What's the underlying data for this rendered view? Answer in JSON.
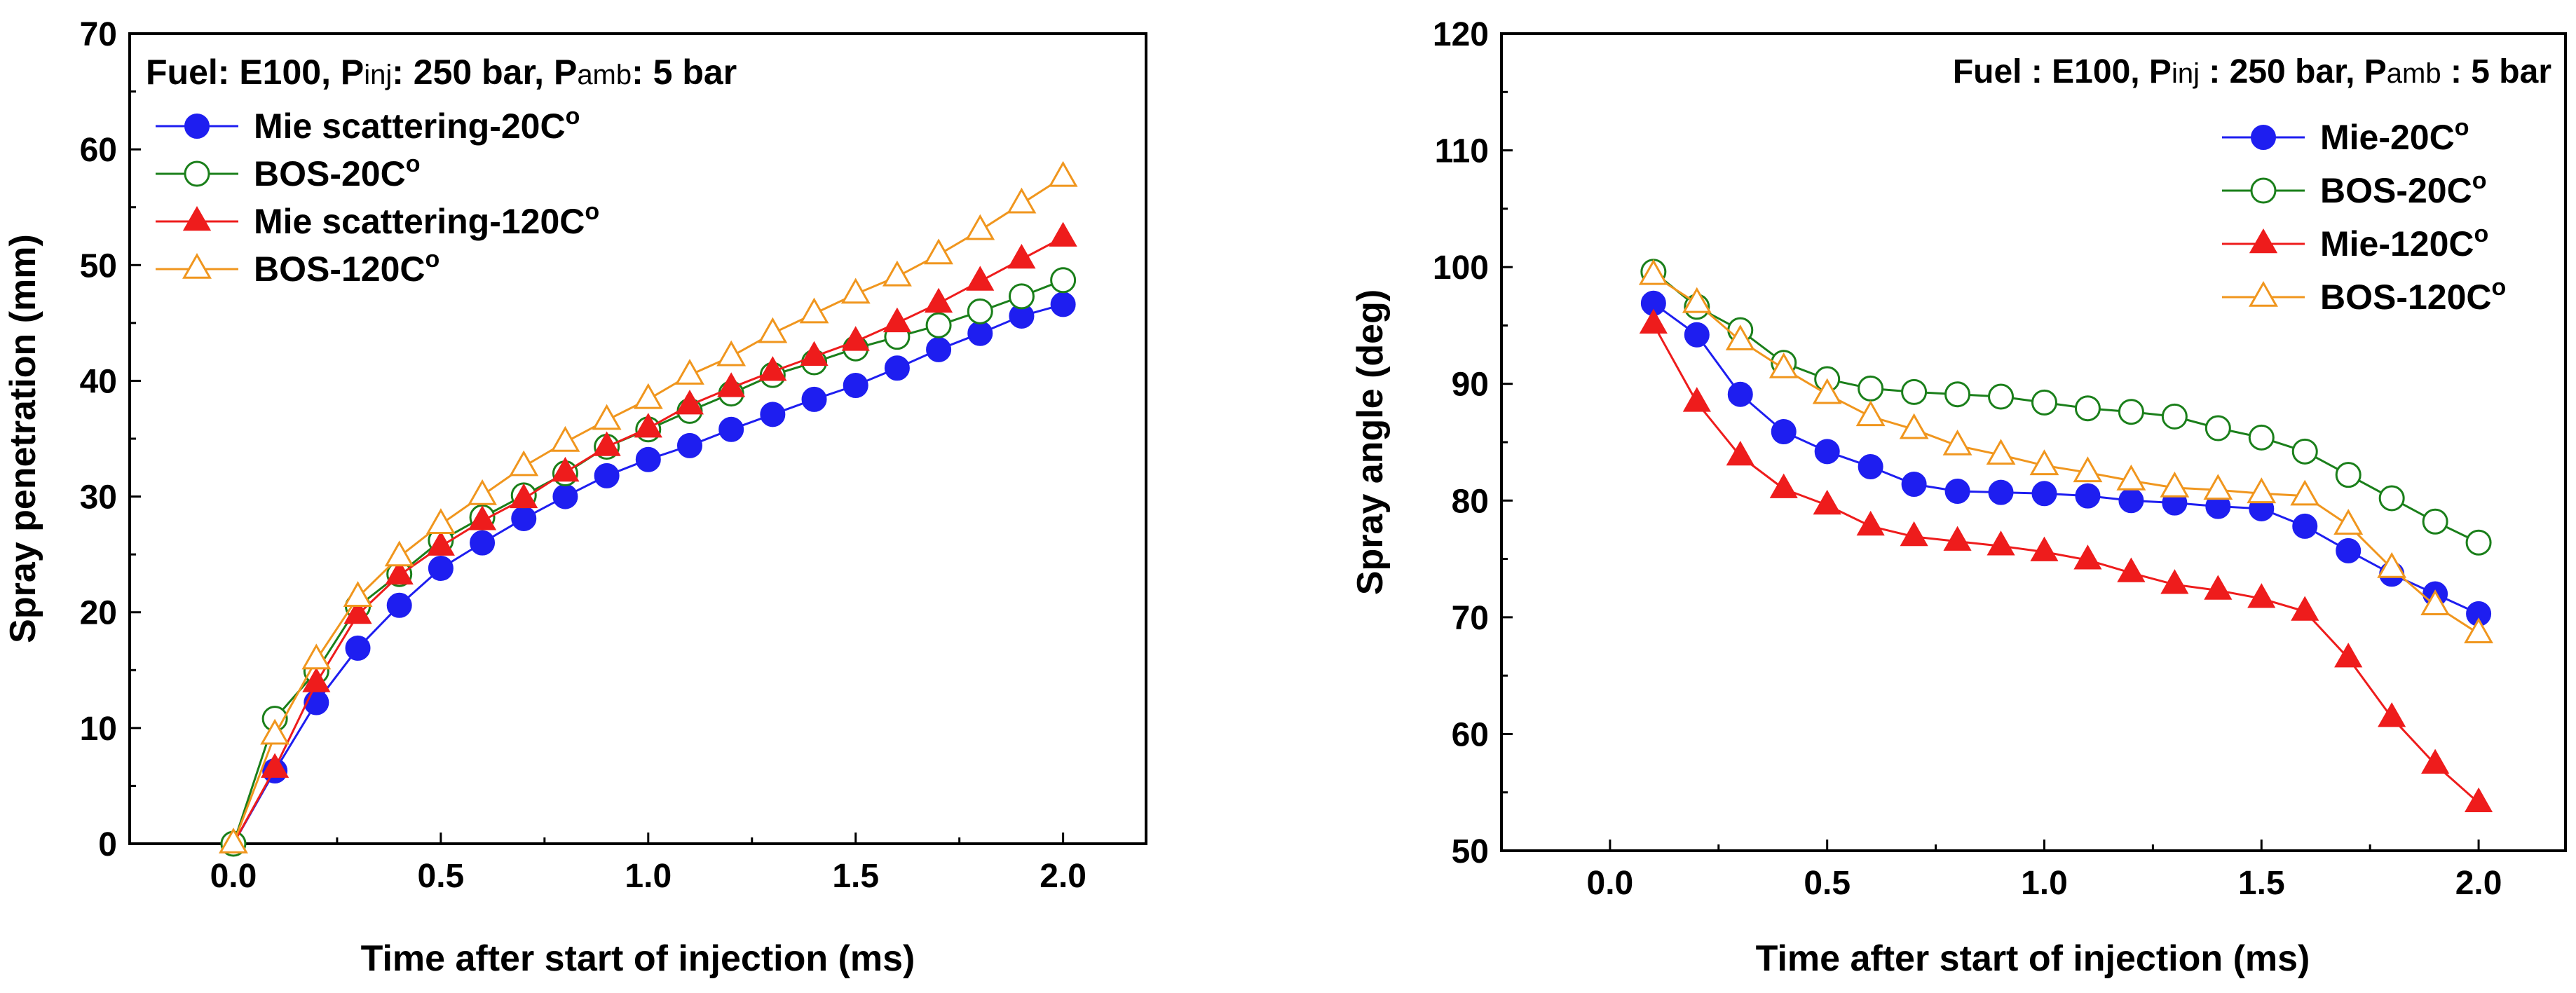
{
  "chart_data": [
    {
      "type": "line",
      "title": "",
      "annotation": {
        "prefix": "Fuel: E100, P",
        "sub1": "inj",
        "mid": ": 250 bar, P",
        "sub2": "amb",
        "suffix": ": 5 bar"
      },
      "xlabel": "Time after start of injection (ms)",
      "ylabel": "Spray penetration (mm)",
      "xlim": [
        -0.25,
        2.2
      ],
      "ylim": [
        0,
        70
      ],
      "xticks": [
        0.0,
        0.5,
        1.0,
        1.5,
        2.0
      ],
      "xtick_labels": [
        "0.0",
        "0.5",
        "1.0",
        "1.5",
        "2.0"
      ],
      "yticks": [
        0,
        10,
        20,
        30,
        40,
        50,
        60,
        70
      ],
      "ytick_labels": [
        "0",
        "10",
        "20",
        "30",
        "40",
        "50",
        "60",
        "70"
      ],
      "legend_position": "top-left",
      "series": [
        {
          "name": "Mie scattering-20C",
          "sup": "o",
          "color": "#1e1ef0",
          "marker": "circle",
          "filled": true,
          "x": [
            0,
            0.1,
            0.2,
            0.3,
            0.4,
            0.5,
            0.6,
            0.7,
            0.8,
            0.9,
            1.0,
            1.1,
            1.2,
            1.3,
            1.4,
            1.5,
            1.6,
            1.7,
            1.8,
            1.9,
            2.0
          ],
          "y": [
            0,
            6.3,
            12.2,
            16.9,
            20.6,
            23.8,
            26.0,
            28.1,
            30.0,
            31.8,
            33.2,
            34.4,
            35.8,
            37.1,
            38.4,
            39.6,
            41.1,
            42.7,
            44.1,
            45.6,
            46.6
          ]
        },
        {
          "name": "BOS-20C",
          "sup": "o",
          "color": "#1a7f1a",
          "marker": "circle",
          "filled": false,
          "x": [
            0,
            0.1,
            0.2,
            0.3,
            0.4,
            0.5,
            0.6,
            0.7,
            0.8,
            0.9,
            1.0,
            1.1,
            1.2,
            1.3,
            1.4,
            1.5,
            1.6,
            1.7,
            1.8,
            1.9,
            2.0
          ],
          "y": [
            0,
            10.8,
            14.9,
            20.5,
            23.3,
            26.2,
            28.2,
            30.1,
            32.0,
            34.3,
            35.8,
            37.4,
            38.9,
            40.5,
            41.6,
            42.8,
            43.8,
            44.8,
            46.0,
            47.3,
            48.7
          ]
        },
        {
          "name": "Mie scattering-120C",
          "sup": "o",
          "color": "#ee1c1c",
          "marker": "triangle",
          "filled": true,
          "x": [
            0,
            0.1,
            0.2,
            0.3,
            0.4,
            0.5,
            0.6,
            0.7,
            0.8,
            0.9,
            1.0,
            1.1,
            1.2,
            1.3,
            1.4,
            1.5,
            1.6,
            1.7,
            1.8,
            1.9,
            2.0
          ],
          "y": [
            0,
            6.5,
            13.9,
            19.8,
            23.2,
            25.7,
            27.9,
            29.8,
            32.1,
            34.3,
            35.9,
            37.9,
            39.4,
            40.8,
            42.1,
            43.4,
            45.0,
            46.7,
            48.6,
            50.5,
            52.4
          ]
        },
        {
          "name": "BOS-120C",
          "sup": "o",
          "color": "#f0961e",
          "marker": "triangle",
          "filled": false,
          "x": [
            0,
            0.1,
            0.2,
            0.3,
            0.4,
            0.5,
            0.6,
            0.7,
            0.8,
            0.9,
            1.0,
            1.1,
            1.2,
            1.3,
            1.4,
            1.5,
            1.6,
            1.7,
            1.8,
            1.9,
            2.0
          ],
          "y": [
            0,
            9.4,
            15.9,
            21.3,
            24.8,
            27.6,
            30.1,
            32.6,
            34.7,
            36.6,
            38.4,
            40.5,
            42.1,
            44.1,
            45.8,
            47.5,
            49.0,
            50.9,
            53.0,
            55.3,
            57.6
          ]
        }
      ]
    },
    {
      "type": "line",
      "title": "",
      "annotation": {
        "prefix": "Fuel : E100, P",
        "sub1": "inj",
        "mid": " : 250 bar, P",
        "sub2": "amb",
        "suffix": " : 5 bar"
      },
      "xlabel": "Time after start of injection (ms)",
      "ylabel": "Spray angle (deg)",
      "xlim": [
        -0.25,
        2.2
      ],
      "ylim": [
        50,
        120
      ],
      "xticks": [
        0.0,
        0.5,
        1.0,
        1.5,
        2.0
      ],
      "xtick_labels": [
        "0.0",
        "0.5",
        "1.0",
        "1.5",
        "2.0"
      ],
      "yticks": [
        50,
        60,
        70,
        80,
        90,
        100,
        110,
        120
      ],
      "ytick_labels": [
        "50",
        "60",
        "70",
        "80",
        "90",
        "100",
        "110",
        "120"
      ],
      "legend_position": "top-right",
      "series": [
        {
          "name": "Mie-20C",
          "sup": "o",
          "color": "#1e1ef0",
          "marker": "circle",
          "filled": true,
          "x": [
            0.1,
            0.2,
            0.3,
            0.4,
            0.5,
            0.6,
            0.7,
            0.8,
            0.9,
            1.0,
            1.1,
            1.2,
            1.3,
            1.4,
            1.5,
            1.6,
            1.7,
            1.8,
            1.9,
            2.0
          ],
          "y": [
            96.9,
            94.2,
            89.1,
            85.9,
            84.2,
            82.9,
            81.4,
            80.8,
            80.7,
            80.6,
            80.4,
            80.0,
            79.8,
            79.5,
            79.3,
            77.8,
            75.7,
            73.7,
            72.0,
            70.3
          ]
        },
        {
          "name": "BOS-20C",
          "sup": "o",
          "color": "#1a7f1a",
          "marker": "circle",
          "filled": false,
          "x": [
            0.1,
            0.2,
            0.3,
            0.4,
            0.5,
            0.6,
            0.7,
            0.8,
            0.9,
            1.0,
            1.1,
            1.2,
            1.3,
            1.4,
            1.5,
            1.6,
            1.7,
            1.8,
            1.9,
            2.0
          ],
          "y": [
            99.6,
            96.6,
            94.6,
            91.8,
            90.4,
            89.6,
            89.3,
            89.1,
            88.9,
            88.4,
            87.9,
            87.6,
            87.2,
            86.2,
            85.4,
            84.2,
            82.2,
            80.2,
            78.2,
            76.4
          ]
        },
        {
          "name": "Mie-120C",
          "sup": "o",
          "color": "#ee1c1c",
          "marker": "triangle",
          "filled": true,
          "x": [
            0.1,
            0.2,
            0.3,
            0.4,
            0.5,
            0.6,
            0.7,
            0.8,
            0.9,
            1.0,
            1.1,
            1.2,
            1.3,
            1.4,
            1.5,
            1.6,
            1.7,
            1.8,
            1.9,
            2.0
          ],
          "y": [
            95.1,
            88.4,
            83.8,
            81.0,
            79.6,
            77.8,
            76.9,
            76.5,
            76.1,
            75.6,
            74.9,
            73.8,
            72.8,
            72.3,
            71.6,
            70.5,
            66.5,
            61.4,
            57.4,
            54.1
          ]
        },
        {
          "name": "BOS-120C",
          "sup": "o",
          "color": "#f0961e",
          "marker": "triangle",
          "filled": false,
          "x": [
            0.1,
            0.2,
            0.3,
            0.4,
            0.5,
            0.6,
            0.7,
            0.8,
            0.9,
            1.0,
            1.1,
            1.2,
            1.3,
            1.4,
            1.5,
            1.6,
            1.7,
            1.8,
            1.9,
            2.0
          ],
          "y": [
            99.3,
            96.9,
            93.7,
            91.3,
            89.1,
            87.2,
            86.1,
            84.7,
            83.9,
            83.0,
            82.4,
            81.7,
            81.1,
            80.9,
            80.6,
            80.4,
            77.9,
            74.2,
            71.0,
            68.6
          ]
        }
      ]
    }
  ]
}
